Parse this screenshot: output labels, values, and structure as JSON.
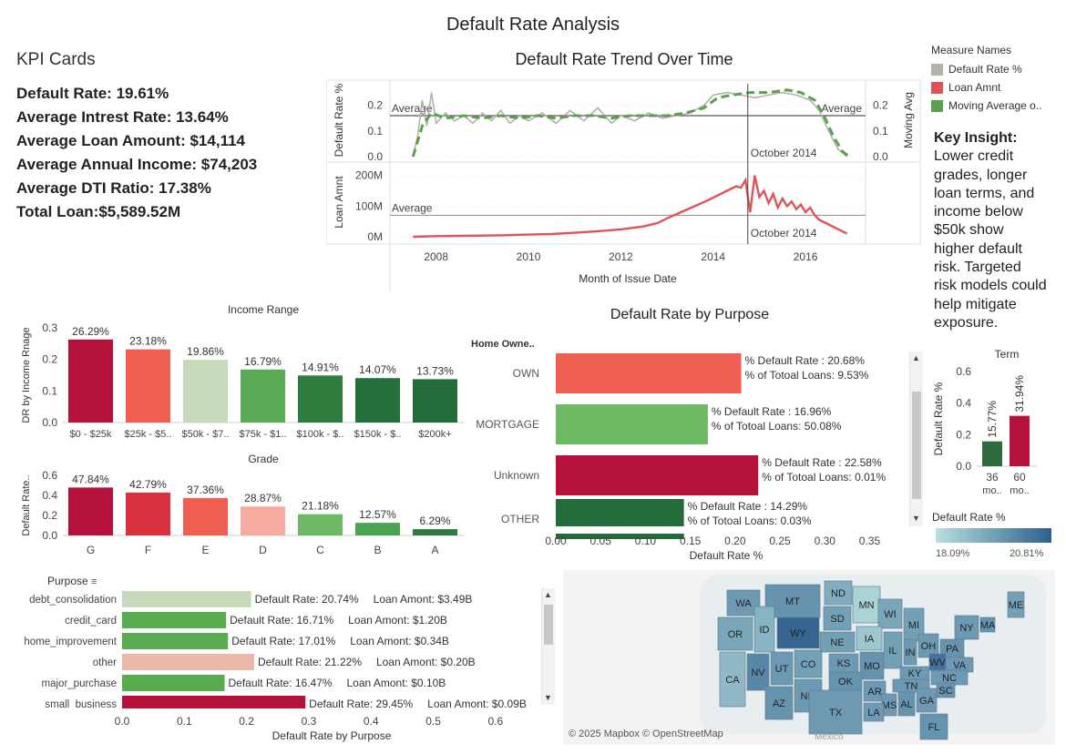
{
  "dashboard_title": "Default Rate Analysis",
  "kpi": {
    "heading": "KPI Cards",
    "lines": [
      "Default Rate: 19.61%",
      "Average Intrest Rate: 13.64%",
      "Average Loan Amount: $14,114",
      "Average Annual Income: $74,203",
      "Average DTI Ratio: 17.38%",
      "Total Loan:$5,589.52M"
    ]
  },
  "legend": {
    "title": "Measure Names",
    "items": [
      {
        "label": "Default Rate %",
        "color": "#b5b0ab"
      },
      {
        "label": "Loan Amnt",
        "color": "#e05458"
      },
      {
        "label": "Moving Average o..",
        "color": "#59a14f"
      }
    ]
  },
  "insight": {
    "title": "Key Insight:",
    "lines": [
      "Lower credit",
      "grades, longer",
      "loan terms, and",
      "income below",
      "$50k show",
      "higher default",
      "risk. Targeted",
      "risk models could",
      "help mitigate",
      "exposure."
    ]
  },
  "colors": {
    "dark_red": "#b5123b",
    "red": "#d8323f",
    "salmon": "#f05d51",
    "pink": "#f5aba0",
    "light_green": "#c5dab8",
    "green": "#6db964",
    "mid_green": "#4aa350",
    "dark_green": "#2e7d3f",
    "darker_green": "#236b39"
  },
  "chart_data": [
    {
      "type": "line",
      "title": "Default Rate Trend Over Time",
      "xlabel": "Month of Issue Date",
      "x_ticks": [
        "2008",
        "2010",
        "2012",
        "2014",
        "2016"
      ],
      "annotation": "October 2014",
      "top_panel": {
        "ylabel_left": "Default Rate %",
        "ylabel_right": "Moving Avg",
        "y_ticks": [
          "0.0",
          "0.1",
          "0.2"
        ],
        "y_ticks_right": [
          "0.0",
          "0.1",
          "0.2"
        ],
        "ylim": [
          0,
          0.27
        ],
        "reference_label": "Average",
        "reference_value": 0.16,
        "default_rate": [
          [
            2007.5,
            0.0
          ],
          [
            2007.6,
            0.08
          ],
          [
            2007.7,
            0.22
          ],
          [
            2007.8,
            0.12
          ],
          [
            2007.9,
            0.25
          ],
          [
            2008.0,
            0.13
          ],
          [
            2008.2,
            0.17
          ],
          [
            2008.4,
            0.14
          ],
          [
            2008.6,
            0.16
          ],
          [
            2008.8,
            0.13
          ],
          [
            2009.0,
            0.17
          ],
          [
            2009.2,
            0.14
          ],
          [
            2009.4,
            0.18
          ],
          [
            2009.6,
            0.13
          ],
          [
            2009.8,
            0.16
          ],
          [
            2010.0,
            0.14
          ],
          [
            2010.3,
            0.17
          ],
          [
            2010.6,
            0.13
          ],
          [
            2010.9,
            0.18
          ],
          [
            2011.2,
            0.14
          ],
          [
            2011.5,
            0.19
          ],
          [
            2011.8,
            0.13
          ],
          [
            2012.0,
            0.16
          ],
          [
            2012.3,
            0.14
          ],
          [
            2012.6,
            0.17
          ],
          [
            2012.9,
            0.15
          ],
          [
            2013.2,
            0.16
          ],
          [
            2013.5,
            0.17
          ],
          [
            2013.8,
            0.2
          ],
          [
            2014.0,
            0.24
          ],
          [
            2014.3,
            0.25
          ],
          [
            2014.6,
            0.24
          ],
          [
            2014.9,
            0.23
          ],
          [
            2015.2,
            0.24
          ],
          [
            2015.5,
            0.25
          ],
          [
            2015.8,
            0.24
          ],
          [
            2016.1,
            0.22
          ],
          [
            2016.3,
            0.18
          ],
          [
            2016.5,
            0.1
          ],
          [
            2016.7,
            0.03
          ],
          [
            2016.9,
            0.0
          ]
        ],
        "moving_avg": [
          [
            2007.5,
            0.0
          ],
          [
            2007.7,
            0.12
          ],
          [
            2007.9,
            0.17
          ],
          [
            2008.2,
            0.15
          ],
          [
            2008.6,
            0.16
          ],
          [
            2009.0,
            0.15
          ],
          [
            2009.4,
            0.16
          ],
          [
            2009.8,
            0.15
          ],
          [
            2010.2,
            0.16
          ],
          [
            2010.6,
            0.15
          ],
          [
            2011.0,
            0.16
          ],
          [
            2011.4,
            0.16
          ],
          [
            2011.8,
            0.15
          ],
          [
            2012.2,
            0.16
          ],
          [
            2012.6,
            0.16
          ],
          [
            2013.0,
            0.16
          ],
          [
            2013.4,
            0.17
          ],
          [
            2013.8,
            0.19
          ],
          [
            2014.1,
            0.23
          ],
          [
            2014.4,
            0.24
          ],
          [
            2014.8,
            0.25
          ],
          [
            2015.2,
            0.25
          ],
          [
            2015.6,
            0.26
          ],
          [
            2015.9,
            0.25
          ],
          [
            2016.2,
            0.22
          ],
          [
            2016.4,
            0.16
          ],
          [
            2016.6,
            0.08
          ],
          [
            2016.8,
            0.02
          ],
          [
            2016.95,
            0.0
          ]
        ]
      },
      "bottom_panel": {
        "ylabel": "Loan Amnt",
        "y_ticks": [
          "0M",
          "100M",
          "200M"
        ],
        "ylim": [
          0,
          220
        ],
        "reference_label": "Average",
        "reference_value": 70,
        "loan_amnt": [
          [
            2007.5,
            0
          ],
          [
            2008.0,
            2
          ],
          [
            2008.5,
            3
          ],
          [
            2009.0,
            4
          ],
          [
            2009.5,
            5
          ],
          [
            2010.0,
            7
          ],
          [
            2010.5,
            9
          ],
          [
            2011.0,
            13
          ],
          [
            2011.5,
            18
          ],
          [
            2012.0,
            24
          ],
          [
            2012.5,
            34
          ],
          [
            2012.8,
            45
          ],
          [
            2013.0,
            60
          ],
          [
            2013.3,
            80
          ],
          [
            2013.6,
            100
          ],
          [
            2013.9,
            120
          ],
          [
            2014.1,
            135
          ],
          [
            2014.3,
            150
          ],
          [
            2014.5,
            165
          ],
          [
            2014.6,
            160
          ],
          [
            2014.7,
            185
          ],
          [
            2014.8,
            80
          ],
          [
            2014.9,
            200
          ],
          [
            2015.0,
            130
          ],
          [
            2015.1,
            150
          ],
          [
            2015.2,
            110
          ],
          [
            2015.3,
            140
          ],
          [
            2015.4,
            95
          ],
          [
            2015.5,
            125
          ],
          [
            2015.6,
            100
          ],
          [
            2015.7,
            115
          ],
          [
            2015.8,
            90
          ],
          [
            2015.9,
            105
          ],
          [
            2016.0,
            80
          ],
          [
            2016.1,
            95
          ],
          [
            2016.2,
            70
          ],
          [
            2016.3,
            55
          ],
          [
            2016.5,
            40
          ],
          [
            2016.7,
            25
          ],
          [
            2016.9,
            10
          ]
        ]
      }
    },
    {
      "type": "bar",
      "title": "Income Range",
      "ylabel": "DR by Income Rnage",
      "y_ticks": [
        "0.0",
        "0.1",
        "0.2",
        "0.3"
      ],
      "ylim": [
        0,
        0.3
      ],
      "categories": [
        "$0 - $25k",
        "$25k - $5..",
        "$50k - $7..",
        "$75k - $1..",
        "$100k - $..",
        "$150k - $..",
        "$200k+"
      ],
      "values": [
        0.2629,
        0.2318,
        0.1986,
        0.1679,
        0.1491,
        0.1407,
        0.1373
      ],
      "labels": [
        "26.29%",
        "23.18%",
        "19.86%",
        "16.79%",
        "14.91%",
        "14.07%",
        "13.73%"
      ],
      "colors": [
        "#b5123b",
        "#f05d51",
        "#c5dab8",
        "#5aa955",
        "#2e7d3f",
        "#256f3b",
        "#236b39"
      ]
    },
    {
      "type": "bar",
      "title": "Grade",
      "ylabel": "Default Rate..",
      "y_ticks": [
        "0.0",
        "0.2",
        "0.4",
        "0.6"
      ],
      "ylim": [
        0,
        0.6
      ],
      "categories": [
        "G",
        "F",
        "E",
        "D",
        "C",
        "B",
        "A"
      ],
      "values": [
        0.4784,
        0.4279,
        0.3736,
        0.2887,
        0.2118,
        0.1257,
        0.0629
      ],
      "labels": [
        "47.84%",
        "42.79%",
        "37.36%",
        "28.87%",
        "21.18%",
        "12.57%",
        "6.29%"
      ],
      "colors": [
        "#b5123b",
        "#d8323f",
        "#f05d51",
        "#f5aba0",
        "#6db964",
        "#4aa350",
        "#2e7d3f"
      ]
    },
    {
      "type": "bar",
      "orientation": "horizontal",
      "title": "Default Rate by Purpose",
      "row_header": "Home Owne..",
      "xlabel": "Default Rate %",
      "x_ticks": [
        "0.00",
        "0.05",
        "0.10",
        "0.15",
        "0.20",
        "0.25",
        "0.30",
        "0.35"
      ],
      "xlim": [
        0,
        0.38
      ],
      "categories": [
        "OWN",
        "MORTGAGE",
        "Unknown",
        "OTHER"
      ],
      "values": [
        0.2068,
        0.1696,
        0.2258,
        0.1429
      ],
      "label1": [
        "% Default Rate : 20.68%",
        "% Default Rate : 16.96%",
        "% Default Rate : 22.58%",
        "% Default Rate : 14.29%"
      ],
      "label2": [
        "% of Totoal Loans: 9.53%",
        "% of Totoal Loans: 50.08%",
        "% of Totoal Loans: 0.01%",
        "% of Totoal Loans: 0.03%"
      ],
      "colors": [
        "#f05d51",
        "#6db964",
        "#b5123b",
        "#236b39"
      ]
    },
    {
      "type": "bar",
      "title": "Term",
      "ylabel": "Default Rate %",
      "y_ticks": [
        "0.0",
        "0.2",
        "0.4",
        "0.6"
      ],
      "ylim": [
        0,
        0.6
      ],
      "categories": [
        "36 mo..",
        "60 mo.."
      ],
      "cat_line1": [
        "36",
        "60"
      ],
      "cat_line2": [
        "mo..",
        "mo.."
      ],
      "values": [
        0.1577,
        0.3194
      ],
      "labels": [
        "15.77%",
        "31.94%"
      ],
      "colors": [
        "#2e6b3f",
        "#b5123b"
      ]
    },
    {
      "type": "bar",
      "orientation": "horizontal",
      "title": "Purpose",
      "xlabel": "Default Rate by Purpose",
      "x_ticks": [
        "0.0",
        "0.1",
        "0.2",
        "0.3",
        "0.4",
        "0.5",
        "0.6"
      ],
      "xlim": [
        0,
        0.65
      ],
      "categories": [
        "debt_consolidation",
        "credit_card",
        "home_improvement",
        "other",
        "major_purchase",
        "small_business"
      ],
      "values": [
        0.2074,
        0.1671,
        0.1701,
        0.2122,
        0.1647,
        0.2945
      ],
      "rate_labels": [
        "Default Rate: 20.74%",
        "Default Rate: 16.71%",
        "Default Rate: 17.01%",
        "Default Rate: 21.22%",
        "Default Rate: 16.47%",
        "Default Rate: 29.45%"
      ],
      "amount_labels": [
        "Loan Amont: $3.49B",
        "Loan Amont: $1.20B",
        "Loan Amont: $0.34B",
        "Loan Amont: $0.20B",
        "Loan Amont: $0.10B",
        "Loan Amont: $0.09B"
      ],
      "colors": [
        "#c5dab8",
        "#5aab4f",
        "#5aab4f",
        "#eab9a9",
        "#5aab4f",
        "#b5123b"
      ]
    },
    {
      "type": "heatmap",
      "title": "Default Rate %",
      "legend_min": "18.09%",
      "legend_max": "20.81%",
      "states": [
        "WA",
        "MT",
        "ND",
        "MN",
        "OR",
        "ID",
        "WY",
        "SD",
        "WI",
        "MI",
        "ME",
        "NY",
        "MA",
        "NE",
        "IA",
        "CA",
        "NV",
        "UT",
        "CO",
        "KS",
        "MO",
        "IL",
        "IN",
        "OH",
        "PA",
        "WV",
        "VA",
        "AZ",
        "NM",
        "OK",
        "KY",
        "TN",
        "NC",
        "AR",
        "MS",
        "AL",
        "GA",
        "SC",
        "TX",
        "LA",
        "FL"
      ],
      "attribution": "© 2025 Mapbox © OpenStreetMap",
      "map_label": "Mexico"
    }
  ]
}
